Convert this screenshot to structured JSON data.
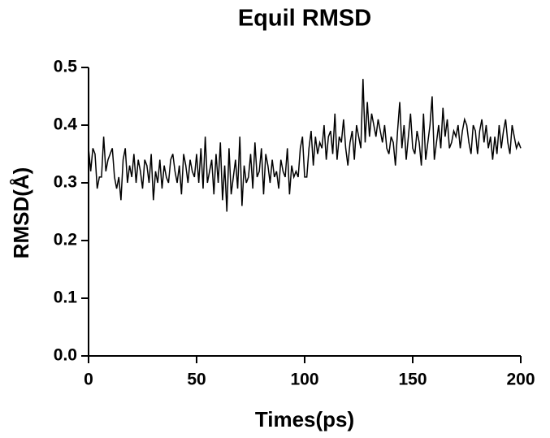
{
  "chart_data": {
    "type": "line",
    "title": "Equil RMSD",
    "x_label": "Times(ps)",
    "y_label": "RMSD(Å)",
    "x": [
      0,
      1,
      2,
      3,
      4,
      5,
      6,
      7,
      8,
      9,
      10,
      11,
      12,
      13,
      14,
      15,
      16,
      17,
      18,
      19,
      20,
      21,
      22,
      23,
      24,
      25,
      26,
      27,
      28,
      29,
      30,
      31,
      32,
      33,
      34,
      35,
      36,
      37,
      38,
      39,
      40,
      41,
      42,
      43,
      44,
      45,
      46,
      47,
      48,
      49,
      50,
      51,
      52,
      53,
      54,
      55,
      56,
      57,
      58,
      59,
      60,
      61,
      62,
      63,
      64,
      65,
      66,
      67,
      68,
      69,
      70,
      71,
      72,
      73,
      74,
      75,
      76,
      77,
      78,
      79,
      80,
      81,
      82,
      83,
      84,
      85,
      86,
      87,
      88,
      89,
      90,
      91,
      92,
      93,
      94,
      95,
      96,
      97,
      98,
      99,
      100,
      101,
      102,
      103,
      104,
      105,
      106,
      107,
      108,
      109,
      110,
      111,
      112,
      113,
      114,
      115,
      116,
      117,
      118,
      119,
      120,
      121,
      122,
      123,
      124,
      125,
      126,
      127,
      128,
      129,
      130,
      131,
      132,
      133,
      134,
      135,
      136,
      137,
      138,
      139,
      140,
      141,
      142,
      143,
      144,
      145,
      146,
      147,
      148,
      149,
      150,
      151,
      152,
      153,
      154,
      155,
      156,
      157,
      158,
      159,
      160,
      161,
      162,
      163,
      164,
      165,
      166,
      167,
      168,
      169,
      170,
      171,
      172,
      173,
      174,
      175,
      176,
      177,
      178,
      179,
      180,
      181,
      182,
      183,
      184,
      185,
      186,
      187,
      188,
      189,
      190,
      191,
      192,
      193,
      194,
      195,
      196,
      197,
      198,
      199,
      200
    ],
    "series": [
      {
        "color": "#000000",
        "values": [
          0.36,
          0.32,
          0.36,
          0.35,
          0.29,
          0.31,
          0.31,
          0.38,
          0.32,
          0.34,
          0.35,
          0.36,
          0.31,
          0.29,
          0.31,
          0.27,
          0.34,
          0.36,
          0.3,
          0.33,
          0.31,
          0.35,
          0.3,
          0.34,
          0.32,
          0.29,
          0.34,
          0.33,
          0.3,
          0.35,
          0.27,
          0.32,
          0.3,
          0.34,
          0.29,
          0.33,
          0.31,
          0.3,
          0.34,
          0.35,
          0.32,
          0.3,
          0.33,
          0.28,
          0.35,
          0.33,
          0.3,
          0.34,
          0.32,
          0.31,
          0.35,
          0.3,
          0.36,
          0.29,
          0.38,
          0.3,
          0.32,
          0.34,
          0.28,
          0.35,
          0.3,
          0.37,
          0.27,
          0.33,
          0.25,
          0.36,
          0.28,
          0.31,
          0.34,
          0.29,
          0.38,
          0.26,
          0.33,
          0.3,
          0.31,
          0.35,
          0.29,
          0.37,
          0.31,
          0.32,
          0.36,
          0.28,
          0.35,
          0.33,
          0.3,
          0.34,
          0.31,
          0.32,
          0.29,
          0.34,
          0.32,
          0.31,
          0.36,
          0.28,
          0.33,
          0.31,
          0.32,
          0.31,
          0.36,
          0.38,
          0.31,
          0.31,
          0.36,
          0.39,
          0.33,
          0.38,
          0.35,
          0.37,
          0.36,
          0.4,
          0.34,
          0.38,
          0.39,
          0.35,
          0.42,
          0.34,
          0.38,
          0.37,
          0.41,
          0.36,
          0.33,
          0.37,
          0.39,
          0.34,
          0.4,
          0.38,
          0.36,
          0.48,
          0.37,
          0.44,
          0.38,
          0.42,
          0.4,
          0.38,
          0.41,
          0.39,
          0.37,
          0.4,
          0.36,
          0.35,
          0.38,
          0.37,
          0.33,
          0.39,
          0.44,
          0.36,
          0.4,
          0.34,
          0.38,
          0.42,
          0.36,
          0.35,
          0.39,
          0.37,
          0.33,
          0.42,
          0.34,
          0.37,
          0.4,
          0.45,
          0.34,
          0.37,
          0.4,
          0.36,
          0.43,
          0.38,
          0.41,
          0.36,
          0.37,
          0.39,
          0.38,
          0.4,
          0.36,
          0.39,
          0.41,
          0.4,
          0.37,
          0.35,
          0.4,
          0.39,
          0.35,
          0.39,
          0.41,
          0.37,
          0.4,
          0.36,
          0.38,
          0.34,
          0.38,
          0.35,
          0.4,
          0.36,
          0.39,
          0.41,
          0.37,
          0.35,
          0.4,
          0.38,
          0.36,
          0.37,
          0.36
        ]
      }
    ],
    "xlim": [
      0,
      200
    ],
    "xticks": [
      0,
      50,
      100,
      150,
      200
    ],
    "ylim": [
      0,
      0.5
    ],
    "yticks": [
      {
        "value": 0,
        "label": "0.0"
      },
      0.1,
      0.2,
      0.3,
      0.4,
      0.5
    ]
  }
}
